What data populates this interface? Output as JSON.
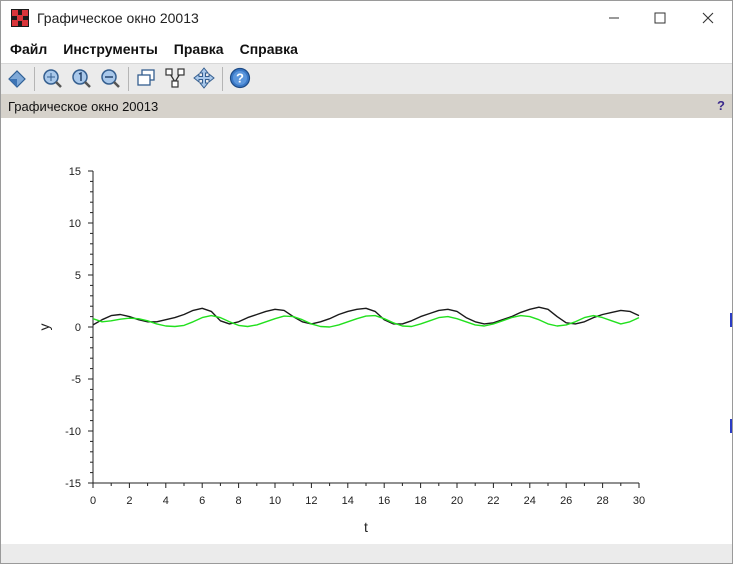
{
  "window": {
    "title": "Графическое окно 20013",
    "controls": [
      "minimize",
      "maximize",
      "close"
    ]
  },
  "menu": {
    "items": [
      "Файл",
      "Инструменты",
      "Правка",
      "Справка"
    ]
  },
  "toolbar": {
    "icons": [
      "rotate-icon",
      "zoom-in-icon",
      "zoom-original-icon",
      "zoom-out-icon",
      "new-window-icon",
      "datatip-icon",
      "pan-icon",
      "help-icon"
    ]
  },
  "graphic": {
    "label": "Графическое окно 20013",
    "help": "?"
  },
  "chart_data": {
    "type": "line",
    "xlabel": "t",
    "ylabel": "y",
    "xlim": [
      0,
      30
    ],
    "ylim": [
      -15,
      15
    ],
    "xticks": [
      "0",
      "2",
      "4",
      "6",
      "8",
      "10",
      "12",
      "14",
      "16",
      "18",
      "20",
      "22",
      "24",
      "26",
      "28",
      "30"
    ],
    "yticks": [
      "15",
      "10",
      "5",
      "0",
      "-5",
      "-10",
      "-15"
    ],
    "grid": false,
    "series": [
      {
        "color": "#1a1a1a",
        "x": [
          0,
          0.5,
          1,
          1.5,
          2,
          2.5,
          3,
          3.5,
          4,
          4.5,
          5,
          5.5,
          6,
          6.5,
          7,
          7.5,
          8,
          8.5,
          9,
          9.5,
          10,
          10.5,
          11,
          11.5,
          12,
          12.5,
          13,
          13.5,
          14,
          14.5,
          15,
          15.5,
          16,
          16.5,
          17,
          17.5,
          18,
          18.5,
          19,
          19.5,
          20,
          20.5,
          21,
          21.5,
          22,
          22.5,
          23,
          23.5,
          24,
          24.5,
          25,
          25.5,
          26,
          26.5,
          27,
          27.5,
          28,
          28.5,
          29,
          29.5,
          30
        ],
        "y": [
          0.2,
          0.7,
          1.1,
          1.2,
          1.0,
          0.7,
          0.5,
          0.5,
          0.7,
          0.9,
          1.2,
          1.6,
          1.8,
          1.5,
          0.6,
          0.3,
          0.5,
          0.9,
          1.2,
          1.5,
          1.7,
          1.6,
          1.0,
          0.5,
          0.3,
          0.5,
          0.8,
          1.2,
          1.5,
          1.7,
          1.8,
          1.5,
          0.7,
          0.3,
          0.3,
          0.6,
          1.0,
          1.3,
          1.6,
          1.7,
          1.5,
          0.9,
          0.5,
          0.3,
          0.4,
          0.7,
          1.0,
          1.4,
          1.7,
          1.9,
          1.7,
          1.0,
          0.4,
          0.3,
          0.5,
          0.9,
          1.2,
          1.4,
          1.6,
          1.5,
          1.1
        ]
      },
      {
        "color": "#22e01e",
        "x": [
          0,
          0.5,
          1,
          1.5,
          2,
          2.5,
          3,
          3.5,
          4,
          4.5,
          5,
          5.5,
          6,
          6.5,
          7,
          7.5,
          8,
          8.5,
          9,
          9.5,
          10,
          10.5,
          11,
          11.5,
          12,
          12.5,
          13,
          13.5,
          14,
          14.5,
          15,
          15.5,
          16,
          16.5,
          17,
          17.5,
          18,
          18.5,
          19,
          19.5,
          20,
          20.5,
          21,
          21.5,
          22,
          22.5,
          23,
          23.5,
          24,
          24.5,
          25,
          25.5,
          26,
          26.5,
          27,
          27.5,
          28,
          28.5,
          29,
          29.5,
          30
        ],
        "y": [
          0.8,
          0.5,
          0.6,
          0.75,
          0.85,
          0.8,
          0.6,
          0.3,
          0.1,
          0.05,
          0.15,
          0.5,
          0.9,
          1.1,
          0.9,
          0.5,
          0.15,
          0.05,
          0.2,
          0.5,
          0.8,
          1.05,
          1.0,
          0.7,
          0.3,
          0.05,
          0.0,
          0.2,
          0.5,
          0.8,
          1.05,
          1.1,
          0.8,
          0.4,
          0.1,
          0.05,
          0.3,
          0.6,
          0.9,
          1.0,
          0.8,
          0.5,
          0.2,
          0.1,
          0.3,
          0.6,
          0.9,
          1.1,
          1.0,
          0.7,
          0.3,
          0.1,
          0.2,
          0.5,
          0.9,
          1.1,
          0.9,
          0.6,
          0.3,
          0.5,
          0.9
        ]
      }
    ]
  }
}
